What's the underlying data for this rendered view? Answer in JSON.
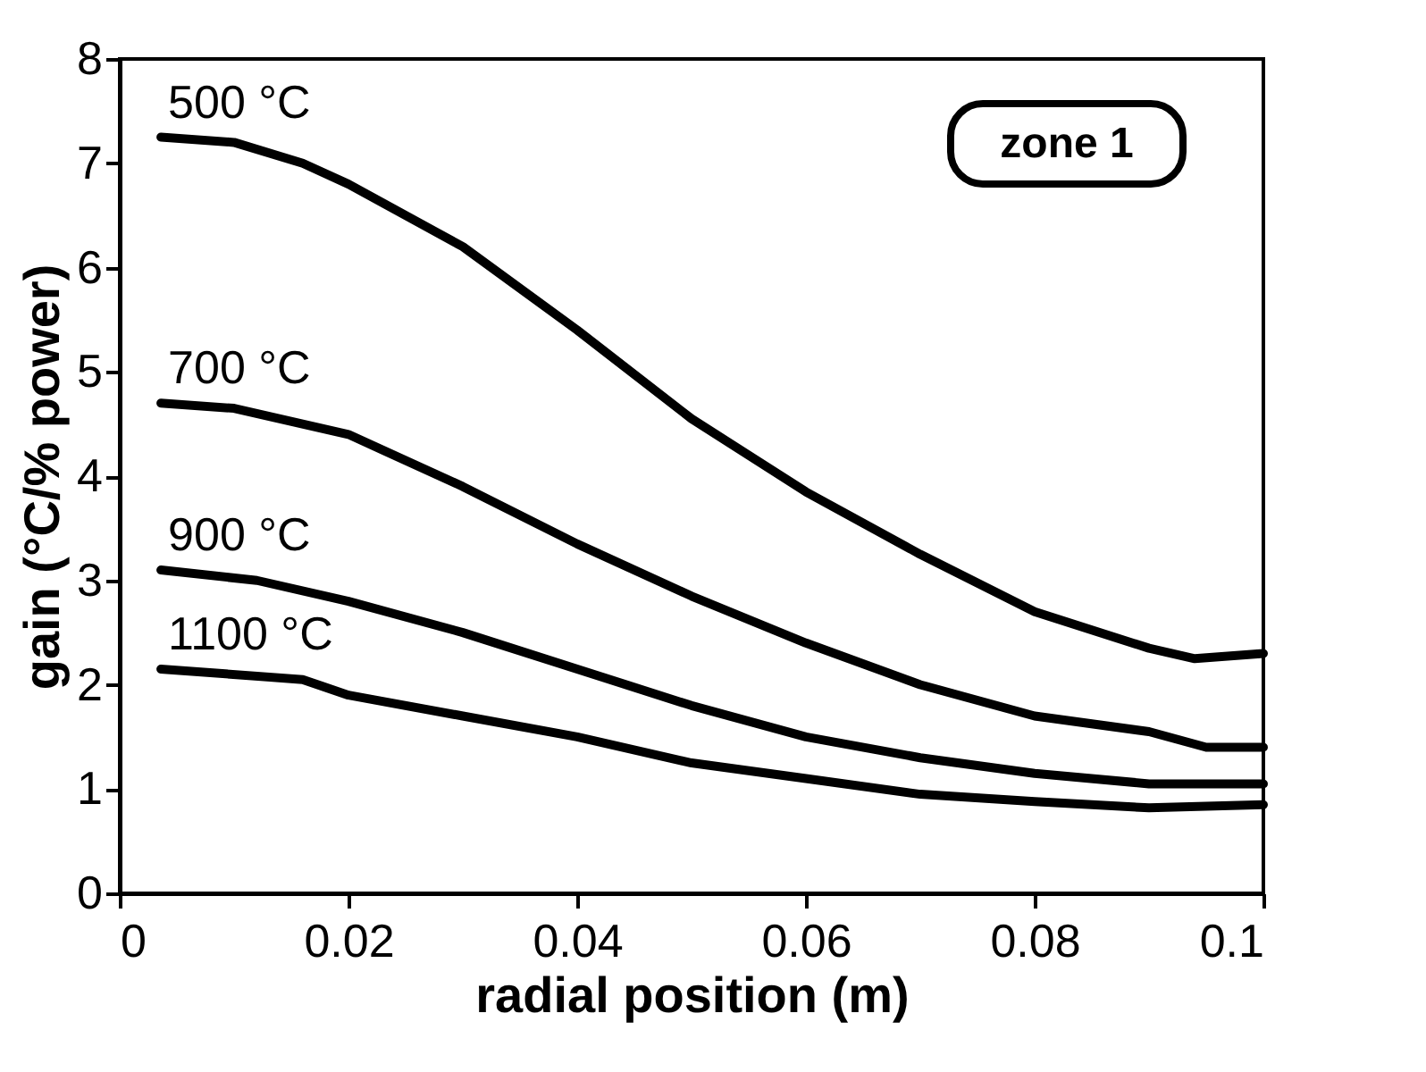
{
  "chart_data": {
    "type": "line",
    "xlabel": "radial position (m)",
    "ylabel": "gain (°C/% power)",
    "xlim": [
      0,
      0.1
    ],
    "ylim": [
      0,
      8
    ],
    "xticks": [
      0,
      0.02,
      0.04,
      0.06,
      0.08,
      0.1
    ],
    "yticks": [
      0,
      1,
      2,
      3,
      4,
      5,
      6,
      7,
      8
    ],
    "grid": false,
    "marker": "none",
    "line_style": "solid",
    "annotations": [
      "zone 1"
    ],
    "series": [
      {
        "name": "500 °C",
        "color": "#000000",
        "x": [
          0.0036,
          0.01,
          0.016,
          0.02,
          0.03,
          0.04,
          0.05,
          0.06,
          0.07,
          0.08,
          0.09,
          0.094,
          0.1
        ],
        "values": [
          7.25,
          7.2,
          7.0,
          6.8,
          6.2,
          5.4,
          4.55,
          3.85,
          3.25,
          2.7,
          2.35,
          2.25,
          2.3
        ]
      },
      {
        "name": "700 °C",
        "color": "#000000",
        "x": [
          0.0036,
          0.01,
          0.02,
          0.03,
          0.04,
          0.05,
          0.06,
          0.07,
          0.08,
          0.09,
          0.095,
          0.1
        ],
        "values": [
          4.7,
          4.65,
          4.4,
          3.9,
          3.35,
          2.85,
          2.4,
          2.0,
          1.7,
          1.55,
          1.4,
          1.4
        ]
      },
      {
        "name": "900 °C",
        "color": "#000000",
        "x": [
          0.0036,
          0.012,
          0.02,
          0.03,
          0.04,
          0.05,
          0.06,
          0.07,
          0.08,
          0.09,
          0.1
        ],
        "values": [
          3.1,
          3.0,
          2.8,
          2.5,
          2.15,
          1.8,
          1.5,
          1.3,
          1.15,
          1.05,
          1.05
        ]
      },
      {
        "name": "1100 °C",
        "color": "#000000",
        "x": [
          0.0036,
          0.016,
          0.02,
          0.03,
          0.04,
          0.05,
          0.06,
          0.07,
          0.08,
          0.09,
          0.1
        ],
        "values": [
          2.15,
          2.05,
          1.9,
          1.7,
          1.5,
          1.25,
          1.1,
          0.95,
          0.88,
          0.82,
          0.85
        ]
      }
    ]
  }
}
